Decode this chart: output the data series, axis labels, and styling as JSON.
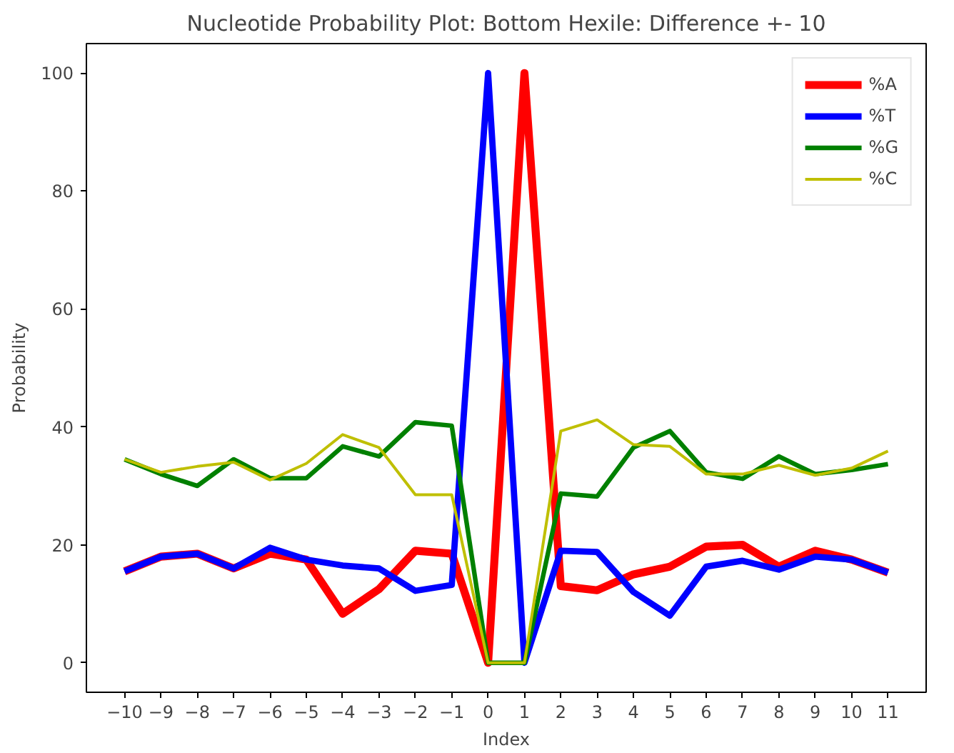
{
  "chart_data": {
    "type": "line",
    "title": "Nucleotide Probability Plot: Bottom Hexile: Difference +- 10",
    "xlabel": "Index",
    "ylabel": "Probability",
    "x": [
      -10,
      -9,
      -8,
      -7,
      -6,
      -5,
      -4,
      -3,
      -2,
      -1,
      0,
      1,
      2,
      3,
      4,
      5,
      6,
      7,
      8,
      9,
      10,
      11
    ],
    "xlim": [
      -11.05,
      12.05
    ],
    "xticks": [
      -10,
      -9,
      -8,
      -7,
      -6,
      -5,
      -4,
      -3,
      -2,
      -1,
      0,
      1,
      2,
      3,
      4,
      5,
      6,
      7,
      8,
      9,
      10,
      11
    ],
    "ylim": [
      -5,
      105
    ],
    "yticks": [
      0,
      20,
      40,
      60,
      80,
      100
    ],
    "grid": false,
    "legend": "top right",
    "series": [
      {
        "name": "%A",
        "color": "#ff0000",
        "values": [
          15.5,
          18,
          18.5,
          16,
          18.5,
          17.5,
          8.3,
          12.5,
          19,
          18.5,
          0,
          100,
          13,
          12.3,
          15,
          16.3,
          19.7,
          20,
          16.3,
          19,
          17.5,
          15.3
        ]
      },
      {
        "name": "%T",
        "color": "#0000ff",
        "values": [
          15.5,
          18,
          18.5,
          16,
          19.5,
          17.5,
          16.5,
          16,
          12.2,
          13.2,
          100,
          0,
          19,
          18.8,
          12,
          8,
          16.3,
          17.3,
          15.8,
          18,
          17.5,
          15.3
        ]
      },
      {
        "name": "%G",
        "color": "#008000",
        "values": [
          34.5,
          32,
          30,
          34.5,
          31.3,
          31.3,
          36.7,
          35,
          40.8,
          40.2,
          0,
          0,
          28.7,
          28.2,
          36.5,
          39.3,
          32.3,
          31.2,
          35,
          32,
          32.7,
          33.7
        ]
      },
      {
        "name": "%C",
        "color": "#bfbf00",
        "values": [
          34.5,
          32.3,
          33.3,
          34,
          31,
          33.8,
          38.7,
          36.5,
          28.5,
          28.5,
          0,
          0,
          39.3,
          41.2,
          37,
          36.7,
          32,
          32,
          33.5,
          31.8,
          33,
          35.9
        ]
      }
    ]
  }
}
